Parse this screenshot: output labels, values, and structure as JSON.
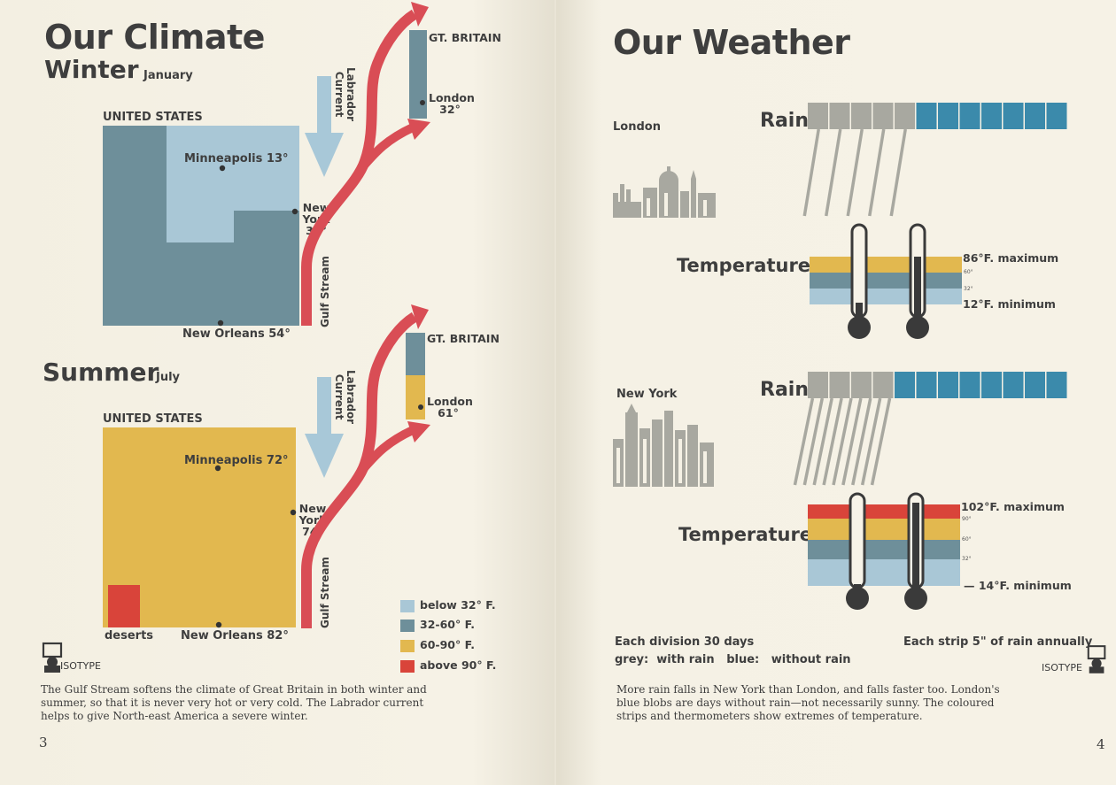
{
  "colors": {
    "below_32": "#a9c7d6",
    "r32_60": "#6e8f9a",
    "r60_90": "#e2b84f",
    "above_90": "#d9443a",
    "rain_grey": "#a8a8a0",
    "dry_blue": "#3b8aab",
    "arrow_red": "#d94d55",
    "labrador_blue": "#a8c8d8"
  },
  "left_page": {
    "title": "Our Climate",
    "winter": {
      "heading": "Winter",
      "month": "January",
      "region": "UNITED STATES",
      "minneapolis": "Minneapolis 13°",
      "new_york": [
        "New",
        "York",
        "31°"
      ],
      "new_orleans": "New Orleans 54°",
      "gt_britain": "GT. BRITAIN",
      "london": [
        "London",
        "32°"
      ],
      "labrador": [
        "Labrador",
        "Current"
      ],
      "gulf": "Gulf Stream"
    },
    "summer": {
      "heading": "Summer",
      "month": "July",
      "region": "UNITED STATES",
      "minneapolis": "Minneapolis 72°",
      "new_york": [
        "New",
        "York",
        "74°"
      ],
      "new_orleans": "New Orleans 82°",
      "deserts": "deserts",
      "gt_britain": "GT. BRITAIN",
      "london": [
        "London",
        "61°"
      ],
      "labrador": [
        "Labrador",
        "Current"
      ],
      "gulf": "Gulf Stream"
    },
    "legend": [
      {
        "label": "below 32° F.",
        "color": "#a9c7d6"
      },
      {
        "label": "32-60° F.",
        "color": "#6e8f9a"
      },
      {
        "label": "60-90° F.",
        "color": "#e2b84f"
      },
      {
        "label": "above 90° F.",
        "color": "#d9443a"
      }
    ],
    "isotype": "ISOTYPE",
    "caption": [
      "The Gulf Stream softens the climate of Great Britain in both winter and",
      "summer, so that it is never very hot or very cold.  The Labrador current",
      "helps to give North-east America a severe winter."
    ],
    "page_number": "3"
  },
  "right_page": {
    "title": "Our Weather",
    "london": {
      "city": "London",
      "rain_label": "Rain",
      "rain_days": 5,
      "dry_days": 7,
      "temp_label": "Temperature",
      "max": "86°F.  maximum",
      "min": "12°F.  minimum",
      "tick_60": "60°",
      "tick_32": "32°"
    },
    "new_york": {
      "city": "New York",
      "rain_label": "Rain",
      "rain_days": 4,
      "dry_days": 8,
      "temp_label": "Temperature",
      "max": "102°F. maximum",
      "min": "— 14°F.  minimum",
      "tick_90": "90°",
      "tick_60": "60°",
      "tick_32": "32°"
    },
    "key_left_1": "Each division 30 days",
    "key_left_2": "grey:  with rain   blue:   without rain",
    "key_right": "Each strip  5\" of rain annually",
    "isotype": "ISOTYPE",
    "caption": [
      "More rain falls in New York than London, and falls faster too.   London's",
      "blue blobs are days without rain—not necessarily sunny.   The coloured",
      "strips and thermometers show extremes of temperature."
    ],
    "page_number": "4"
  }
}
